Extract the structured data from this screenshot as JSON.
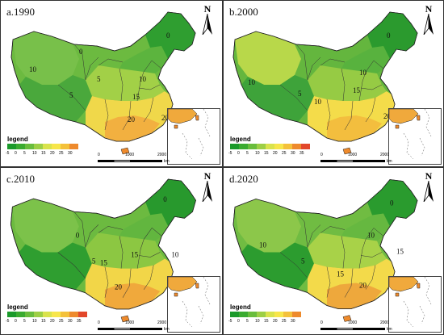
{
  "figure": {
    "panels": [
      {
        "id": "a",
        "label": "a.1990",
        "north": "N",
        "legend_title": "legend",
        "legend_ticks": [
          "-5",
          "0",
          "5",
          "10",
          "15",
          "20",
          "25",
          "30"
        ],
        "scale_ticks": [
          "0",
          "1000",
          "2000"
        ],
        "scale_unit": "km",
        "contours": [
          "0",
          "10",
          "0",
          "5",
          "10",
          "15",
          "20",
          "20",
          "5"
        ]
      },
      {
        "id": "b",
        "label": "b.2000",
        "north": "N",
        "legend_title": "legend",
        "legend_ticks": [
          "-5",
          "0",
          "5",
          "10",
          "15",
          "20",
          "25",
          "30",
          "35"
        ],
        "scale_ticks": [
          "0",
          "1000",
          "2000"
        ],
        "scale_unit": "km",
        "contours": [
          "0",
          "10",
          "10",
          "15",
          "20",
          "10",
          "5"
        ]
      },
      {
        "id": "c",
        "label": "c.2010",
        "north": "N",
        "legend_title": "legend",
        "legend_ticks": [
          "-5",
          "0",
          "5",
          "10",
          "15",
          "20",
          "25",
          "30",
          "35"
        ],
        "scale_ticks": [
          "0",
          "1000",
          "2000"
        ],
        "scale_unit": "km",
        "contours": [
          "0",
          "0",
          "15",
          "15",
          "5",
          "20",
          "10"
        ]
      },
      {
        "id": "d",
        "label": "d.2020",
        "north": "N",
        "legend_title": "legend",
        "legend_ticks": [
          "-5",
          "0",
          "5",
          "10",
          "15",
          "20",
          "25",
          "30"
        ],
        "scale_ticks": [
          "0",
          "1000",
          "2000"
        ],
        "scale_unit": "km",
        "contours": [
          "0",
          "10",
          "10",
          "5",
          "15",
          "20",
          "15"
        ]
      }
    ],
    "legend_colors": [
      "#1a9a2a",
      "#3aab30",
      "#69bd3c",
      "#9dcf45",
      "#d9e34c",
      "#f7e64a",
      "#f4c13a",
      "#ee8a2c",
      "#e2472a"
    ]
  }
}
